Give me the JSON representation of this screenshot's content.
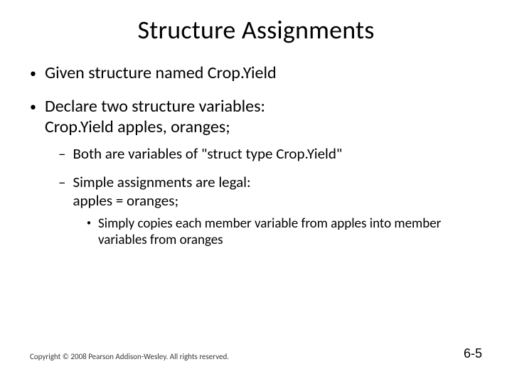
{
  "title": "Structure Assignments",
  "title_fontsize": 36,
  "title_color": "#000000",
  "body": {
    "lvl1_fontsize": 24,
    "lvl2_fontsize": 21,
    "lvl3_fontsize": 19,
    "text_color": "#000000",
    "items": [
      {
        "text": "Given structure named Crop.Yield"
      },
      {
        "text": "Declare two structure variables:",
        "subline": "Crop.Yield apples, oranges;",
        "children": [
          {
            "text": "Both are variables of \"struct type Crop.Yield\""
          },
          {
            "text": "Simple assignments are legal:",
            "subline": "apples = oranges;",
            "children": [
              {
                "text": "Simply copies each member variable from apples into member variables from oranges"
              }
            ]
          }
        ]
      }
    ]
  },
  "footer": {
    "copyright": "Copyright © 2008 Pearson Addison-Wesley. All rights reserved.",
    "copyright_fontsize": 11,
    "page": "6-5",
    "page_fontsize": 18
  },
  "background_color": "#ffffff"
}
